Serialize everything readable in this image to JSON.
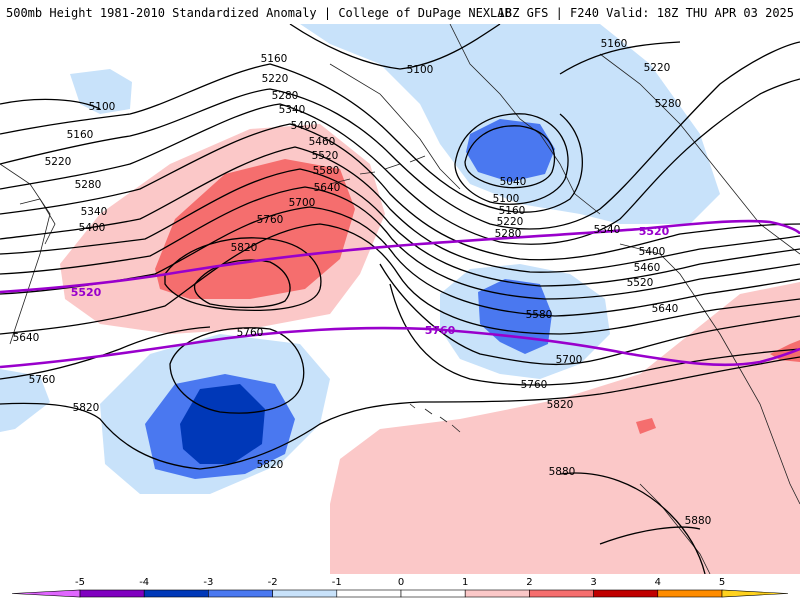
{
  "header": {
    "title_left": "500mb Height 1981-2010 Standardized Anomaly | College of DuPage NEXLAB",
    "title_right": "18Z GFS | F240 Valid: 18Z THU APR 03 2025"
  },
  "colors": {
    "anom_neg5": "#e066ff",
    "anom_neg4": "#8000c0",
    "anom_neg3": "#0038b8",
    "anom_neg2": "#4a78f0",
    "anom_neg1": "#c8e2fa",
    "anom_pos1": "#fbc8c8",
    "anom_pos2": "#f56e6e",
    "anom_pos3": "#c00000",
    "anom_pos4": "#ff8c00",
    "anom_pos5": "#ffd21e",
    "height_contour": "#000000",
    "highlight_contour": "#9900cc",
    "coastline": "#222222"
  },
  "contour_labels": {
    "h5040": "5040",
    "h5100": "5100",
    "h5160": "5160",
    "h5220": "5220",
    "h5280": "5280",
    "h5340": "5340",
    "h5400": "5400",
    "h5460": "5460",
    "h5520": "5520",
    "h5580": "5580",
    "h5640": "5640",
    "h5700": "5700",
    "h5760": "5760",
    "h5820": "5820",
    "h5880": "5880"
  },
  "colorbar": {
    "ticks": [
      "-5",
      "-4",
      "-3",
      "-2",
      "-1",
      "0",
      "1",
      "2",
      "3",
      "4",
      "5"
    ]
  }
}
